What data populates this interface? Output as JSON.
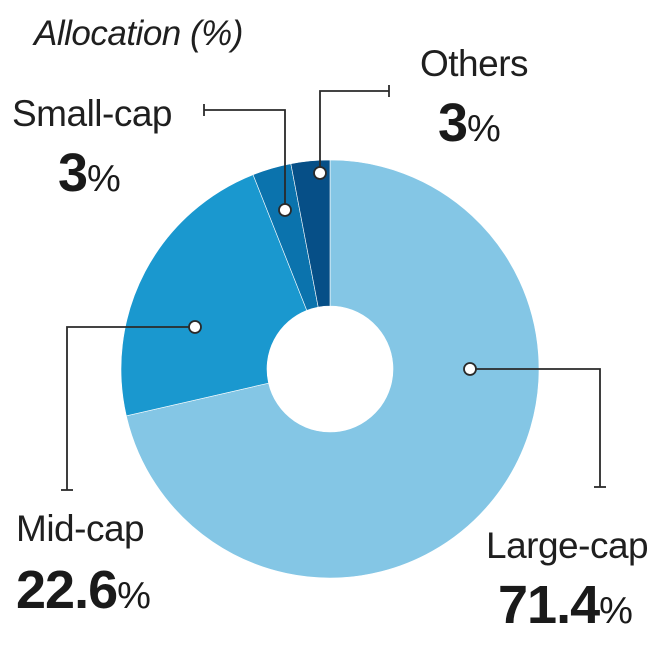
{
  "chart_data": {
    "type": "pie",
    "title": "Allocation (%)",
    "unit": "%",
    "donut": true,
    "slices": [
      {
        "label": "Large-cap",
        "value": 71.4,
        "value_text": "71.4",
        "color": "#84c6e5"
      },
      {
        "label": "Mid-cap",
        "value": 22.6,
        "value_text": "22.6",
        "color": "#1a98cf"
      },
      {
        "label": "Small-cap",
        "value": 3,
        "value_text": "3",
        "color": "#0b73ad"
      },
      {
        "label": "Others",
        "value": 3,
        "value_text": "3",
        "color": "#064f87"
      }
    ]
  }
}
